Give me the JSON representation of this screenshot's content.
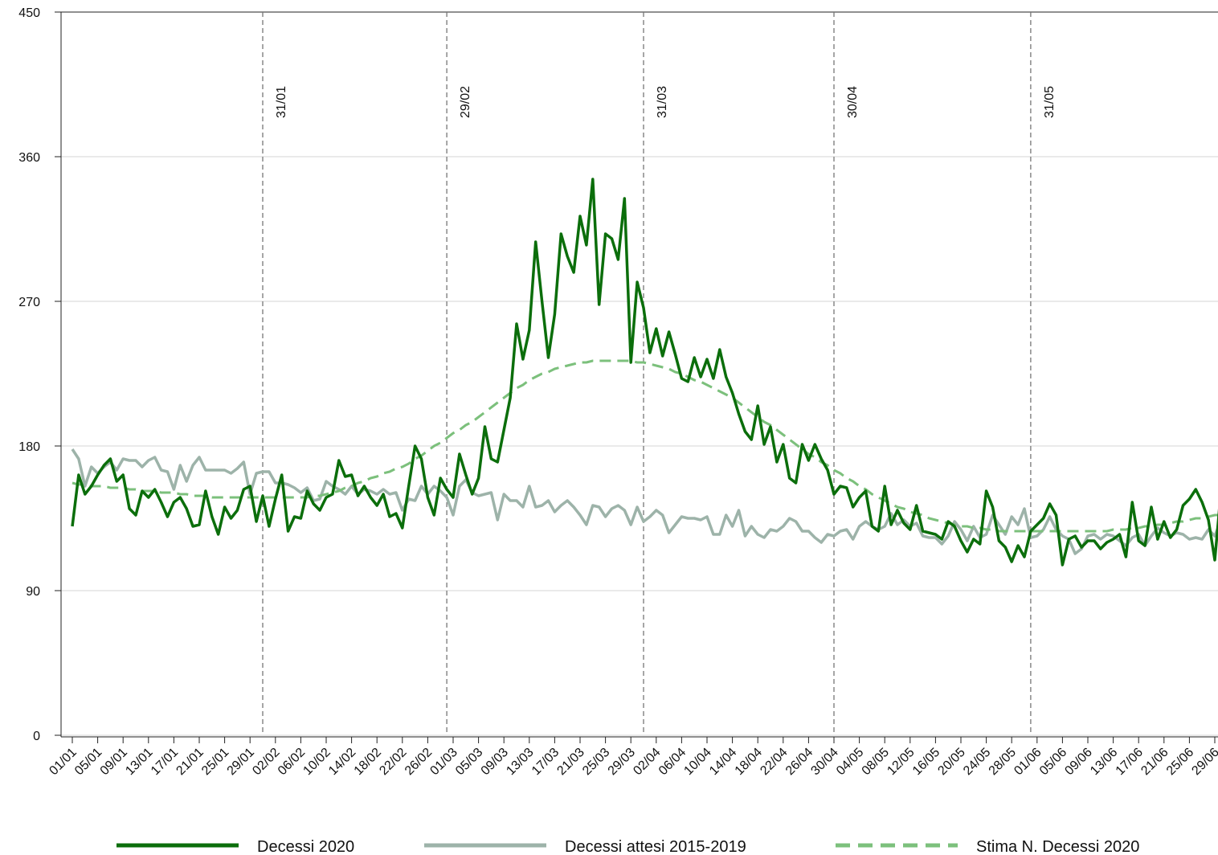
{
  "chart_data": {
    "type": "line",
    "categories": [
      "01/01",
      null,
      null,
      null,
      "05/01",
      null,
      null,
      null,
      "09/01",
      null,
      null,
      null,
      "13/01",
      null,
      null,
      null,
      "17/01",
      null,
      null,
      null,
      "21/01",
      null,
      null,
      null,
      "25/01",
      null,
      null,
      null,
      "29/01",
      null,
      null,
      null,
      "02/02",
      null,
      null,
      null,
      "06/02",
      null,
      null,
      null,
      "10/02",
      null,
      null,
      null,
      "14/02",
      null,
      null,
      null,
      "18/02",
      null,
      null,
      null,
      "22/02",
      null,
      null,
      null,
      "26/02",
      null,
      null,
      null,
      "01/03",
      null,
      null,
      null,
      "05/03",
      null,
      null,
      null,
      "09/03",
      null,
      null,
      null,
      "13/03",
      null,
      null,
      null,
      "17/03",
      null,
      null,
      null,
      "21/03",
      null,
      null,
      null,
      "25/03",
      null,
      null,
      null,
      "29/03",
      null,
      null,
      null,
      "02/04",
      null,
      null,
      null,
      "06/04",
      null,
      null,
      null,
      "10/04",
      null,
      null,
      null,
      "14/04",
      null,
      null,
      null,
      "18/04",
      null,
      null,
      null,
      "22/04",
      null,
      null,
      null,
      "26/04",
      null,
      null,
      null,
      "30/04",
      null,
      null,
      null,
      "04/05",
      null,
      null,
      null,
      "08/05",
      null,
      null,
      null,
      "12/05",
      null,
      null,
      null,
      "16/05",
      null,
      null,
      null,
      "20/05",
      null,
      null,
      null,
      "24/05",
      null,
      null,
      null,
      "28/05",
      null,
      null,
      null,
      "01/06",
      null,
      null,
      null,
      "05/06",
      null,
      null,
      null,
      "09/06",
      null,
      null,
      null,
      "13/06",
      null,
      null,
      null,
      "17/06",
      null,
      null,
      null,
      "21/06",
      null,
      null,
      null,
      "25/06",
      null,
      null,
      null,
      "29/06",
      null
    ],
    "series": [
      {
        "name": "Decessi 2020",
        "color": "#0b6e0b",
        "style": "solid",
        "values": [
          130,
          162,
          150,
          155,
          162,
          168,
          172,
          158,
          162,
          141,
          137,
          152,
          148,
          153,
          145,
          136,
          145,
          148,
          141,
          130,
          131,
          152,
          136,
          125,
          142,
          135,
          140,
          153,
          155,
          133,
          149,
          130,
          147,
          162,
          127,
          136,
          135,
          152,
          144,
          140,
          148,
          150,
          171,
          161,
          162,
          149,
          155,
          148,
          143,
          150,
          136,
          138,
          129,
          155,
          180,
          172,
          148,
          137,
          160,
          153,
          148,
          175,
          162,
          150,
          160,
          192,
          172,
          170,
          190,
          210,
          256,
          234,
          252,
          307,
          270,
          235,
          262,
          312,
          298,
          288,
          323,
          305,
          346,
          268,
          312,
          309,
          296,
          334,
          232,
          282,
          266,
          238,
          253,
          236,
          251,
          237,
          222,
          220,
          235,
          223,
          234,
          222,
          240,
          223,
          213,
          200,
          189,
          184,
          205,
          181,
          192,
          170,
          181,
          160,
          157,
          181,
          171,
          181,
          172,
          165,
          150,
          155,
          154,
          142,
          148,
          152,
          130,
          127,
          155,
          131,
          140,
          132,
          128,
          143,
          127,
          126,
          125,
          122,
          133,
          130,
          121,
          114,
          122,
          119,
          152,
          142,
          121,
          117,
          108,
          118,
          111,
          127,
          131,
          135,
          144,
          137,
          106,
          122,
          124,
          117,
          121,
          121,
          116,
          120,
          122,
          125,
          111,
          145,
          121,
          118,
          142,
          122,
          133,
          123,
          128,
          143,
          147,
          153,
          145,
          134,
          109,
          153
        ]
      },
      {
        "name": "Decessi attesi 2015-2019",
        "color": "#9db3a9",
        "style": "solid",
        "values": [
          178,
          172,
          155,
          167,
          163,
          167,
          170,
          165,
          172,
          171,
          171,
          167,
          171,
          173,
          165,
          164,
          153,
          168,
          158,
          168,
          173,
          165,
          165,
          165,
          165,
          163,
          166,
          170,
          150,
          163,
          164,
          164,
          157,
          157,
          156,
          154,
          151,
          154,
          146,
          147,
          158,
          155,
          153,
          150,
          155,
          150,
          153,
          152,
          150,
          153,
          150,
          151,
          140,
          147,
          146,
          155,
          150,
          155,
          152,
          148,
          137,
          155,
          159,
          151,
          149,
          150,
          151,
          134,
          150,
          146,
          146,
          142,
          155,
          142,
          143,
          146,
          139,
          143,
          146,
          142,
          137,
          131,
          143,
          142,
          136,
          141,
          143,
          140,
          131,
          142,
          133,
          136,
          140,
          137,
          126,
          131,
          136,
          135,
          135,
          134,
          136,
          125,
          125,
          137,
          130,
          140,
          124,
          130,
          125,
          123,
          128,
          127,
          130,
          135,
          133,
          127,
          127,
          123,
          120,
          125,
          124,
          127,
          128,
          122,
          130,
          133,
          130,
          128,
          130,
          138,
          131,
          134,
          130,
          132,
          124,
          123,
          123,
          119,
          124,
          133,
          128,
          121,
          130,
          123,
          125,
          137,
          131,
          125,
          136,
          131,
          141,
          123,
          124,
          128,
          136,
          128,
          124,
          122,
          113,
          116,
          124,
          125,
          122,
          125,
          124,
          121,
          118,
          123,
          125,
          118,
          124,
          129,
          126,
          124,
          126,
          125,
          122,
          123,
          122,
          128,
          124,
          134
        ]
      },
      {
        "name": "Stima N. Decessi 2020",
        "color": "#7cc07c",
        "style": "dashed",
        "values": [
          157,
          156,
          156,
          155,
          155,
          155,
          154,
          154,
          154,
          153,
          153,
          152,
          152,
          152,
          151,
          151,
          151,
          150,
          150,
          149,
          149,
          149,
          148,
          148,
          148,
          148,
          148,
          148,
          148,
          148,
          148,
          148,
          148,
          148,
          148,
          148,
          148,
          148,
          149,
          149,
          150,
          151,
          152,
          154,
          155,
          157,
          158,
          160,
          161,
          163,
          164,
          166,
          167,
          169,
          172,
          174,
          177,
          180,
          182,
          185,
          188,
          190,
          193,
          195,
          198,
          201,
          204,
          207,
          210,
          213,
          216,
          218,
          221,
          223,
          225,
          226,
          228,
          229,
          230,
          231,
          232,
          232,
          233,
          233,
          233,
          233,
          233,
          233,
          233,
          232,
          232,
          231,
          230,
          229,
          228,
          226,
          225,
          223,
          221,
          220,
          218,
          216,
          214,
          212,
          210,
          207,
          204,
          201,
          198,
          195,
          193,
          190,
          187,
          184,
          181,
          178,
          175,
          173,
          170,
          168,
          165,
          163,
          160,
          158,
          155,
          153,
          150,
          148,
          146,
          144,
          142,
          141,
          139,
          138,
          137,
          135,
          134,
          133,
          132,
          131,
          130,
          130,
          129,
          129,
          128,
          128,
          127,
          127,
          127,
          127,
          127,
          127,
          127,
          127,
          127,
          127,
          127,
          127,
          127,
          127,
          127,
          127,
          127,
          127,
          128,
          128,
          128,
          129,
          129,
          130,
          130,
          131,
          131,
          132,
          133,
          133,
          134,
          135,
          135,
          136,
          137,
          137
        ]
      }
    ],
    "ylim": [
      0,
      450
    ],
    "yticks": [
      0,
      90,
      180,
      270,
      360,
      450
    ],
    "grid": true,
    "vlines": [
      "31/01",
      "29/02",
      "31/03",
      "30/04",
      "31/05"
    ],
    "legend": "bottom"
  }
}
